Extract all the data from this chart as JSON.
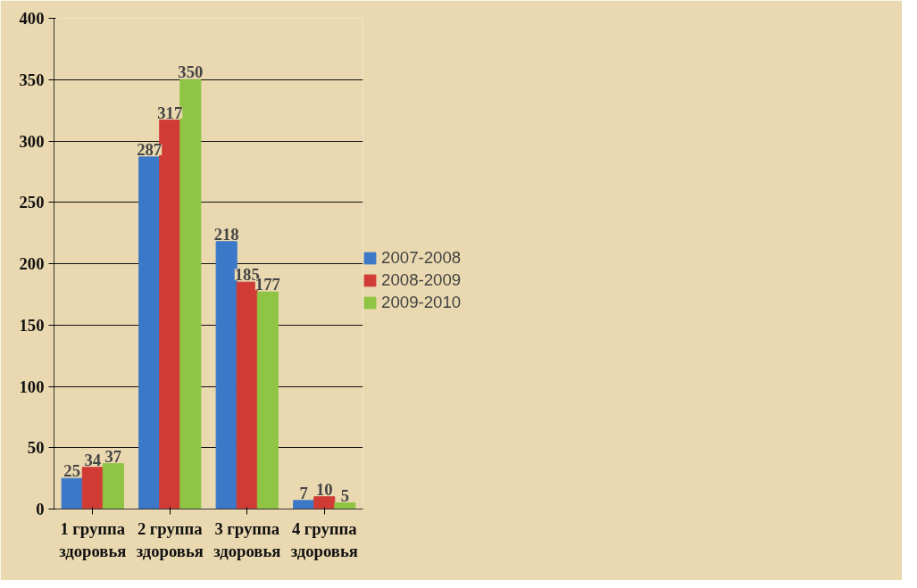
{
  "chart_data": {
    "type": "bar",
    "categories": [
      "1 группа здоровья",
      "2 группа здоровья",
      "3 группа здоровья",
      "4 группа здоровья"
    ],
    "series": [
      {
        "name": "2007-2008",
        "color": "#3b78c8",
        "values": [
          25,
          287,
          218,
          7
        ]
      },
      {
        "name": "2008-2009",
        "color": "#d13b36",
        "values": [
          34,
          317,
          185,
          10
        ]
      },
      {
        "name": "2009-2010",
        "color": "#8fc444",
        "values": [
          37,
          350,
          177,
          5
        ]
      }
    ],
    "ylim": [
      0,
      400
    ],
    "yticks": [
      0,
      50,
      100,
      150,
      200,
      250,
      300,
      350,
      400
    ],
    "grid": "y",
    "legend": "right",
    "data_labels": true
  }
}
